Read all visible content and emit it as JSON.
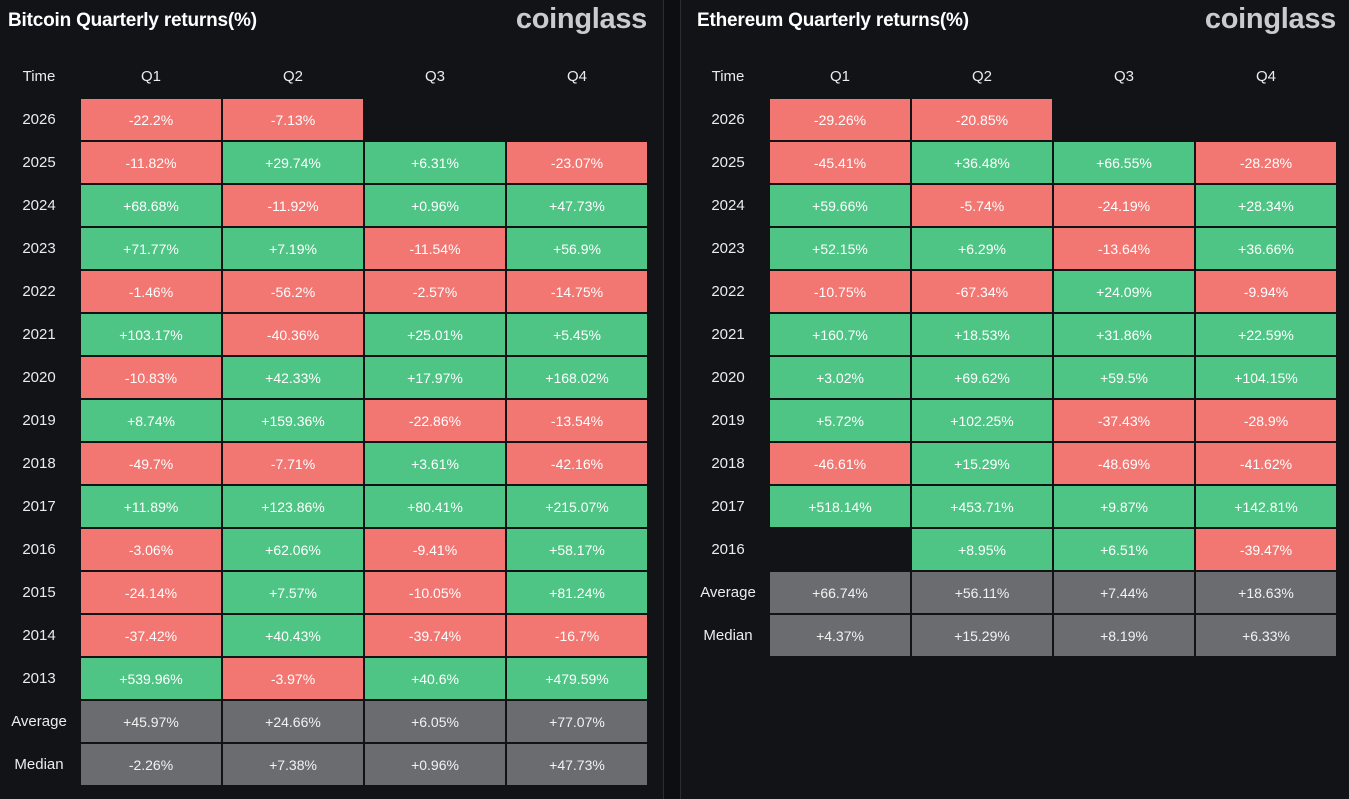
{
  "colors": {
    "positive": "#4ec585",
    "negative": "#f27672",
    "stat": "#6b6c70",
    "background": "#121317"
  },
  "panels": [
    {
      "title": "Bitcoin Quarterly returns(%)",
      "watermark": "coinglass",
      "header": [
        "Time",
        "Q1",
        "Q2",
        "Q3",
        "Q4"
      ],
      "rows": [
        {
          "label": "2026",
          "cells": [
            "-22.2%",
            "-7.13%",
            "",
            ""
          ]
        },
        {
          "label": "2025",
          "cells": [
            "-11.82%",
            "+29.74%",
            "+6.31%",
            "-23.07%"
          ]
        },
        {
          "label": "2024",
          "cells": [
            "+68.68%",
            "-11.92%",
            "+0.96%",
            "+47.73%"
          ]
        },
        {
          "label": "2023",
          "cells": [
            "+71.77%",
            "+7.19%",
            "-11.54%",
            "+56.9%"
          ]
        },
        {
          "label": "2022",
          "cells": [
            "-1.46%",
            "-56.2%",
            "-2.57%",
            "-14.75%"
          ]
        },
        {
          "label": "2021",
          "cells": [
            "+103.17%",
            "-40.36%",
            "+25.01%",
            "+5.45%"
          ]
        },
        {
          "label": "2020",
          "cells": [
            "-10.83%",
            "+42.33%",
            "+17.97%",
            "+168.02%"
          ]
        },
        {
          "label": "2019",
          "cells": [
            "+8.74%",
            "+159.36%",
            "-22.86%",
            "-13.54%"
          ]
        },
        {
          "label": "2018",
          "cells": [
            "-49.7%",
            "-7.71%",
            "+3.61%",
            "-42.16%"
          ]
        },
        {
          "label": "2017",
          "cells": [
            "+11.89%",
            "+123.86%",
            "+80.41%",
            "+215.07%"
          ]
        },
        {
          "label": "2016",
          "cells": [
            "-3.06%",
            "+62.06%",
            "-9.41%",
            "+58.17%"
          ]
        },
        {
          "label": "2015",
          "cells": [
            "-24.14%",
            "+7.57%",
            "-10.05%",
            "+81.24%"
          ]
        },
        {
          "label": "2014",
          "cells": [
            "-37.42%",
            "+40.43%",
            "-39.74%",
            "-16.7%"
          ]
        },
        {
          "label": "2013",
          "cells": [
            "+539.96%",
            "-3.97%",
            "+40.6%",
            "+479.59%"
          ]
        }
      ],
      "stats": [
        {
          "label": "Average",
          "cells": [
            "+45.97%",
            "+24.66%",
            "+6.05%",
            "+77.07%"
          ]
        },
        {
          "label": "Median",
          "cells": [
            "-2.26%",
            "+7.38%",
            "+0.96%",
            "+47.73%"
          ]
        }
      ]
    },
    {
      "title": "Ethereum Quarterly returns(%)",
      "watermark": "coinglass",
      "header": [
        "Time",
        "Q1",
        "Q2",
        "Q3",
        "Q4"
      ],
      "rows": [
        {
          "label": "2026",
          "cells": [
            "-29.26%",
            "-20.85%",
            "",
            ""
          ]
        },
        {
          "label": "2025",
          "cells": [
            "-45.41%",
            "+36.48%",
            "+66.55%",
            "-28.28%"
          ]
        },
        {
          "label": "2024",
          "cells": [
            "+59.66%",
            "-5.74%",
            "-24.19%",
            "+28.34%"
          ]
        },
        {
          "label": "2023",
          "cells": [
            "+52.15%",
            "+6.29%",
            "-13.64%",
            "+36.66%"
          ]
        },
        {
          "label": "2022",
          "cells": [
            "-10.75%",
            "-67.34%",
            "+24.09%",
            "-9.94%"
          ]
        },
        {
          "label": "2021",
          "cells": [
            "+160.7%",
            "+18.53%",
            "+31.86%",
            "+22.59%"
          ]
        },
        {
          "label": "2020",
          "cells": [
            "+3.02%",
            "+69.62%",
            "+59.5%",
            "+104.15%"
          ]
        },
        {
          "label": "2019",
          "cells": [
            "+5.72%",
            "+102.25%",
            "-37.43%",
            "-28.9%"
          ]
        },
        {
          "label": "2018",
          "cells": [
            "-46.61%",
            "+15.29%",
            "-48.69%",
            "-41.62%"
          ]
        },
        {
          "label": "2017",
          "cells": [
            "+518.14%",
            "+453.71%",
            "+9.87%",
            "+142.81%"
          ]
        },
        {
          "label": "2016",
          "cells": [
            "",
            "+8.95%",
            "+6.51%",
            "-39.47%"
          ]
        }
      ],
      "stats": [
        {
          "label": "Average",
          "cells": [
            "+66.74%",
            "+56.11%",
            "+7.44%",
            "+18.63%"
          ]
        },
        {
          "label": "Median",
          "cells": [
            "+4.37%",
            "+15.29%",
            "+8.19%",
            "+6.33%"
          ]
        }
      ]
    }
  ]
}
